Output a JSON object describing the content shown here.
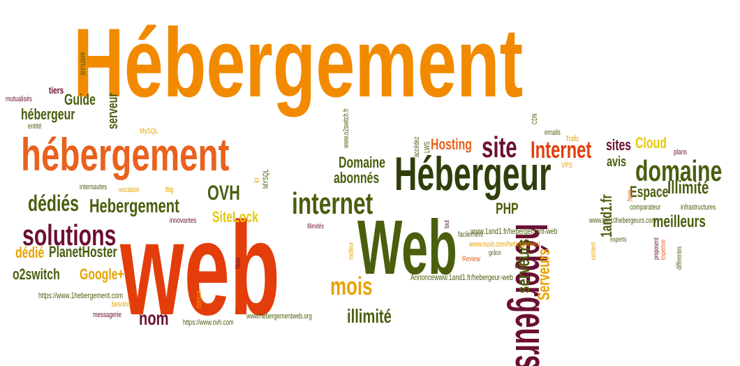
{
  "palette": {
    "orange": "#f28a00",
    "dark_orange": "#e8611d",
    "red_orange": "#e33d0b",
    "olive": "#4a5e0e",
    "dark_olive": "#2f3f0a",
    "maroon": "#6a0f33",
    "yellow": "#e6c80b",
    "amber": "#e8a200"
  },
  "words": [
    "Hébergement",
    "hébergement",
    "web",
    "Web",
    "Hébergeur",
    "hébergeurs",
    "site",
    "Internet",
    "internet",
    "domaine",
    "solutions",
    "dédiés",
    "Hebergement",
    "OVH",
    "SiteLock",
    "mois",
    "illimité",
    "nom",
    "Domaine",
    "abonnés",
    "Hosting",
    "sites",
    "Cloud",
    "avis",
    "Espace",
    "Illimité",
    "meilleurs",
    "serveurs",
    "Serveurs",
    "1and1.fr",
    "PHP",
    "PlanetHoster",
    "o2switch",
    "Google+",
    "dédié",
    "Guide",
    "hébergeur",
    "serveur",
    "tiers",
    "annuaire",
    "mutualisés",
    "entité",
    "MySQL",
    "internautes",
    "vocation",
    "Big",
    "innovantes",
    "ici",
    "MYSQL",
    "Note",
    "https://www.1hebergement.com",
    "https://www.ovh.com",
    "www.hebergementweb.org",
    "besoins",
    "messagerie",
    "conçus",
    "meilleur",
    "tout",
    "LWS",
    "accédez",
    "www.o2switch.fr",
    "CDN",
    "emails",
    "Trafic",
    "VPS",
    "plans",
    "comparateur",
    "infrastructures",
    "www.top10hebergeurs.com",
    "Nom",
    "expertise",
    "experts",
    "proposent",
    "différentes",
    "contient",
    "grâce",
    "facilement",
    "Illimités",
    "www.1and1.fr/hebergement-web",
    "www.nuxit.com/hebergement",
    "Review",
    "Tous",
    "Annoncewww.1and1.fr/hebergeur-web"
  ]
}
